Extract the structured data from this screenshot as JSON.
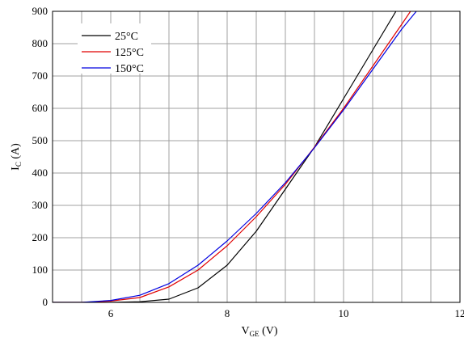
{
  "chart_data": {
    "type": "line",
    "xlabel": {
      "main": "V",
      "sub": "GE",
      "unit": " (V)"
    },
    "ylabel": {
      "main": "I",
      "sub": "C",
      "unit": " (A)"
    },
    "xlim": [
      5,
      12
    ],
    "ylim": [
      0,
      900
    ],
    "xticks": [
      6,
      8,
      10,
      12
    ],
    "yticks": [
      0,
      100,
      200,
      300,
      400,
      500,
      600,
      700,
      800,
      900
    ],
    "grid": true,
    "legend_position": "top-left",
    "series": [
      {
        "name": "25°C",
        "color": "#000000",
        "points": [
          [
            5,
            0
          ],
          [
            6,
            0
          ],
          [
            6.5,
            2
          ],
          [
            7,
            10
          ],
          [
            7.5,
            45
          ],
          [
            8,
            115
          ],
          [
            8.5,
            220
          ],
          [
            9,
            350
          ],
          [
            9.5,
            480
          ],
          [
            10,
            630
          ],
          [
            10.5,
            780
          ],
          [
            10.9,
            900
          ]
        ]
      },
      {
        "name": "125°C",
        "color": "#e00000",
        "points": [
          [
            5,
            0
          ],
          [
            5.5,
            0
          ],
          [
            6,
            4
          ],
          [
            6.5,
            15
          ],
          [
            7,
            48
          ],
          [
            7.5,
            100
          ],
          [
            8,
            175
          ],
          [
            8.5,
            265
          ],
          [
            9,
            365
          ],
          [
            9.5,
            480
          ],
          [
            10,
            600
          ],
          [
            10.5,
            730
          ],
          [
            11,
            860
          ],
          [
            11.15,
            900
          ]
        ]
      },
      {
        "name": "150°C",
        "color": "#0000e0",
        "points": [
          [
            5,
            0
          ],
          [
            5.5,
            0
          ],
          [
            6,
            6
          ],
          [
            6.5,
            22
          ],
          [
            7,
            58
          ],
          [
            7.5,
            115
          ],
          [
            8,
            190
          ],
          [
            8.5,
            275
          ],
          [
            9,
            370
          ],
          [
            9.5,
            478
          ],
          [
            10,
            595
          ],
          [
            10.5,
            720
          ],
          [
            11,
            845
          ],
          [
            11.25,
            900
          ]
        ]
      }
    ]
  }
}
